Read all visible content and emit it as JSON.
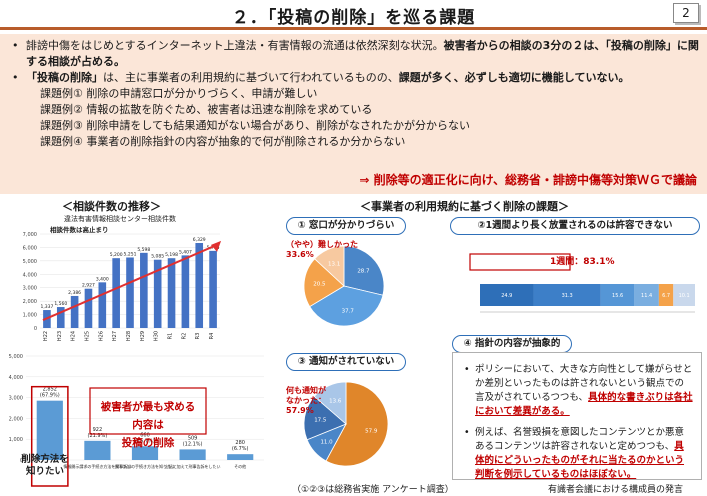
{
  "header": {
    "title": "２．「投稿の削除」を巡る課題",
    "page_number": "2"
  },
  "summary": {
    "bullet1_plain": "誹謗中傷をはじめとするインターネット上違法・有害情報の流通は依然深刻な状況。",
    "bullet1_bold": "被害者からの相談の3分の２は、「投稿の削除」に関する相談が占める。",
    "bullet2_bold1": "「投稿の削除」",
    "bullet2_plain": "は、主に事業者の利用規約に基づいて行われているものの、",
    "bullet2_bold2": "課題が多く、必ずしも適切に機能していない。",
    "examples": [
      "課題例①  削除の申請窓口が分かりづらく、申請が難しい",
      "課題例②  情報の拡散を防ぐため、被害者は迅速な削除を求めている",
      "課題例③  削除申請をしても結果通知がない場合があり、削除がなされたかが分からない",
      "課題例④  事業者の削除指針の内容が抽象的で何が削除されるか分からない"
    ],
    "conclusion": "⇒  削除等の適正化に向け、総務省・誹謗中傷等対策ＷＧで議論"
  },
  "left_section": {
    "heading": "＜相談件数の推移＞",
    "bar_chart_title": "違法有害情報相談センター相談件数",
    "bar_chart_note": "相談件数は高止まり",
    "requests_label": "被害者が最も求める内容は",
    "requests_label2": "投稿の削除",
    "deletion_label": "削除方法を\n知りたい"
  },
  "right_section": {
    "heading": "＜事業者の利用規約に基づく削除の課題＞",
    "pill1": "① 窓口が分かりづらい",
    "pill1_callout": "（やや）難しかった\n33.6%",
    "pill2": "②1週間より長く放置されるのは許容できない",
    "pill2_callout": "1週間：83.1%",
    "pill3": "③ 通知がされていない",
    "pill3_callout": "何も通知が\nなかった：\n57.9%",
    "pill4": "④ 指針の内容が抽象的",
    "note1_plain": "ポリシーにおいて、大きな方向性として嫌がらせとか差別といったものは許されないという観点での言及がされているつつも、",
    "note1_hl": "具体的な書きぶりは各社において差異がある。",
    "note2_plain": "例えば、名誉毀損を意図したコンテンツとか悪意あるコンテンツは許容されないと定めつつも、",
    "note2_hl": "具体的にどういったものがそれに当たるのかという判断を例示しているものはほぼない。",
    "survey_caption": "（①②③は総務省実施  アンケート調査）",
    "source_caption": "有識者会議における構成員の発言"
  },
  "chart_data": [
    {
      "type": "bar",
      "title": "違法有害情報相談センター相談件数",
      "categories": [
        "H22",
        "H23",
        "H24",
        "H25",
        "H26",
        "H27",
        "H28",
        "H29",
        "H30",
        "R1",
        "R2",
        "R3",
        "R4"
      ],
      "values": [
        1337,
        1560,
        2386,
        2927,
        3400,
        5200,
        5251,
        5598,
        5085,
        5198,
        5407,
        6329,
        5745
      ],
      "value_labels": [
        "1,337",
        "1,560",
        "2,386",
        "2,927",
        "3,400",
        "5,200",
        "5,251",
        "5,598",
        "5,085",
        "5,198",
        "5,407",
        "6,329",
        "5,745"
      ],
      "ylim": [
        0,
        7000
      ],
      "yticks": [
        0,
        1000,
        2000,
        3000,
        4000,
        5000,
        6000,
        7000
      ],
      "color": "#4472c4",
      "trend_color": "#e03030"
    },
    {
      "type": "bar",
      "categories": [
        "削除方法を知りたい",
        "情報開示請求の手続き方法を知りたい",
        "民事訴訟の手続き方法を知りたい",
        "上記に加えて刑事告訴をしたい",
        "その他"
      ],
      "values": [
        2852,
        922,
        660,
        509,
        280
      ],
      "value_labels": [
        "2,852\n(67.9%)",
        "922\n(21.9%)",
        "660\n(15.7%)",
        "509\n(12.1%)",
        "280\n(6.7%)"
      ],
      "ylim": [
        0,
        5000
      ],
      "yticks": [
        0,
        1000,
        2000,
        3000,
        4000,
        5000
      ],
      "color": "#5b9bd5"
    },
    {
      "type": "pie",
      "title": "① 窓口が分かりづらい",
      "values": [
        28.7,
        37.7,
        20.5,
        13.1
      ],
      "colors": [
        "#4a86c8",
        "#5da0e0",
        "#f4a24a",
        "#f7c9a0"
      ],
      "labels": [
        "28.7",
        "37.7",
        "20.5",
        "13.1"
      ]
    },
    {
      "type": "pie",
      "title": "③ 通知がされていない",
      "values": [
        57.9,
        11.0,
        17.5,
        13.6
      ],
      "colors": [
        "#e0862a",
        "#4a86c8",
        "#3c6fb0",
        "#a9c6e8"
      ],
      "labels": [
        "57.9",
        "11.0",
        "17.5",
        "13.6"
      ]
    },
    {
      "type": "bar",
      "title": "②1週間より長く放置されるのは許容できない",
      "series": [
        {
          "values": [
            24.9,
            31.3,
            15.6,
            11.4,
            6.7,
            10.1
          ]
        }
      ],
      "labels": [
        "24.9",
        "31.3",
        "15.6",
        "11.4",
        "6.7",
        "10.1"
      ],
      "colors": [
        "#2e6fb8",
        "#3d7fc8",
        "#5596d6",
        "#7aaee0",
        "#f4a24a",
        "#c9d8ec"
      ]
    }
  ]
}
